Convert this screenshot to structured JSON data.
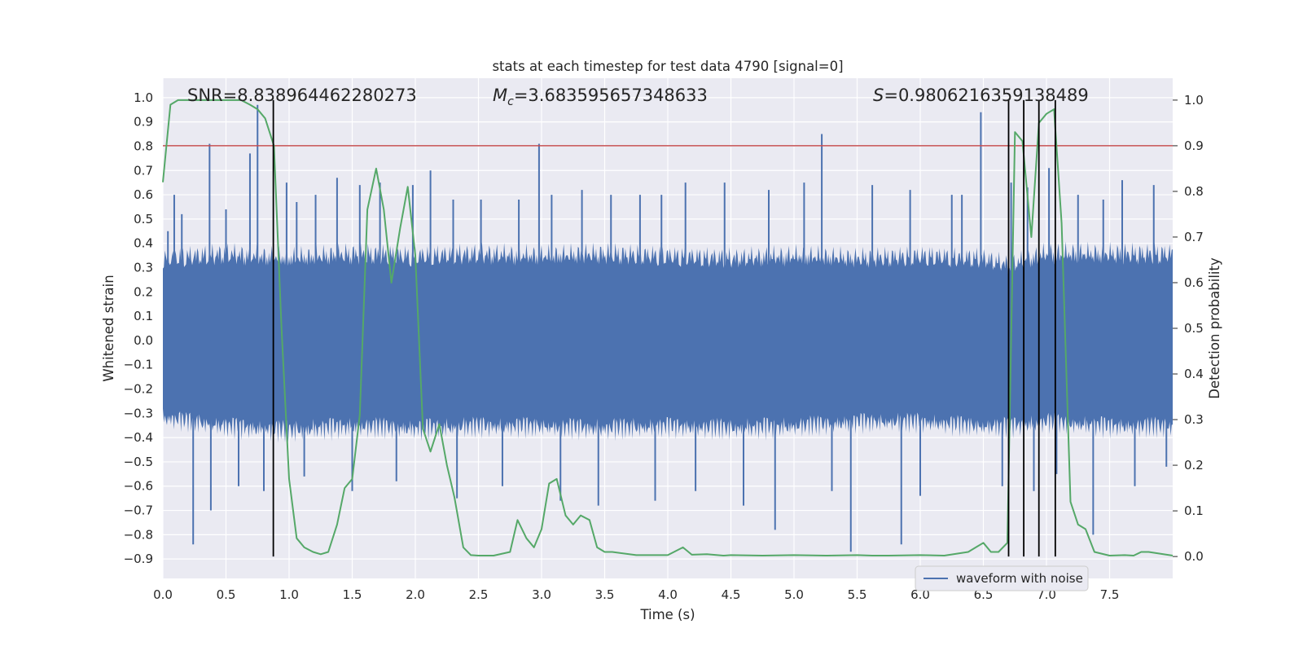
{
  "chart_data": {
    "type": "line",
    "title": "stats at each timestep for test data 4790 [signal=0]",
    "xlabel": "Time (s)",
    "ylabel": "Whitened strain",
    "ylabel_right": "Detection probability",
    "xlim": [
      0,
      8
    ],
    "ylim": [
      -0.98,
      1.08
    ],
    "ylim_right": [
      -0.048,
      1.048
    ],
    "x_ticks": [
      0.0,
      0.5,
      1.0,
      1.5,
      2.0,
      2.5,
      3.0,
      3.5,
      4.0,
      4.5,
      5.0,
      5.5,
      6.0,
      6.5,
      7.0,
      7.5
    ],
    "x_tick_labels": [
      "0.0",
      "0.5",
      "1.0",
      "1.5",
      "2.0",
      "2.5",
      "3.0",
      "3.5",
      "4.0",
      "4.5",
      "5.0",
      "5.5",
      "6.0",
      "6.5",
      "7.0",
      "7.5"
    ],
    "y_ticks": [
      -0.9,
      -0.8,
      -0.7,
      -0.6,
      -0.5,
      -0.4,
      -0.3,
      -0.2,
      -0.1,
      0.0,
      0.1,
      0.2,
      0.3,
      0.4,
      0.5,
      0.6,
      0.7,
      0.8,
      0.9,
      1.0
    ],
    "y_tick_labels": [
      "−0.9",
      "−0.8",
      "−0.7",
      "−0.6",
      "−0.5",
      "−0.4",
      "−0.3",
      "−0.2",
      "−0.1",
      "0.0",
      "0.1",
      "0.2",
      "0.3",
      "0.4",
      "0.5",
      "0.6",
      "0.7",
      "0.8",
      "0.9",
      "1.0"
    ],
    "y2_ticks": [
      0.0,
      0.1,
      0.2,
      0.3,
      0.4,
      0.5,
      0.6,
      0.7,
      0.8,
      0.9,
      1.0
    ],
    "y2_tick_labels": [
      "0.0",
      "0.1",
      "0.2",
      "0.3",
      "0.4",
      "0.5",
      "0.6",
      "0.7",
      "0.8",
      "0.9",
      "1.0"
    ],
    "annotations": {
      "snr": "SNR=8.838964462280273",
      "mc_symbol": "M",
      "mc_sub": "c",
      "mc_value": "=3.683595657348633",
      "s_symbol": "S",
      "s_value": "=0.9806216359138489"
    },
    "legend": {
      "label": "waveform with noise",
      "placement": "lower-right"
    },
    "threshold": {
      "axis": "right",
      "value": 0.9,
      "color": "#c44e52"
    },
    "vertical_markers": [
      0.875,
      6.7,
      6.82,
      6.94,
      7.07
    ],
    "noise_envelope": {
      "x": [
        0.0,
        0.5,
        1.0,
        1.5,
        2.0,
        2.5,
        3.0,
        3.5,
        4.0,
        4.5,
        5.0,
        5.5,
        6.0,
        6.5,
        6.7,
        7.0,
        7.5,
        8.0
      ],
      "upper": [
        0.38,
        0.4,
        0.38,
        0.4,
        0.39,
        0.4,
        0.39,
        0.4,
        0.39,
        0.38,
        0.39,
        0.38,
        0.39,
        0.38,
        0.35,
        0.4,
        0.4,
        0.4
      ],
      "lower": [
        -0.36,
        -0.4,
        -0.42,
        -0.4,
        -0.41,
        -0.4,
        -0.4,
        -0.41,
        -0.4,
        -0.41,
        -0.4,
        -0.38,
        -0.38,
        -0.4,
        -0.4,
        -0.38,
        -0.4,
        -0.4
      ],
      "peaks": [
        [
          0.04,
          0.45
        ],
        [
          0.09,
          0.6
        ],
        [
          0.15,
          0.52
        ],
        [
          0.24,
          -0.84
        ],
        [
          0.37,
          0.81
        ],
        [
          0.38,
          -0.7
        ],
        [
          0.5,
          0.54
        ],
        [
          0.6,
          -0.6
        ],
        [
          0.69,
          0.77
        ],
        [
          0.75,
          0.97
        ],
        [
          0.8,
          -0.62
        ],
        [
          0.98,
          0.65
        ],
        [
          1.06,
          0.57
        ],
        [
          1.12,
          -0.56
        ],
        [
          1.21,
          0.6
        ],
        [
          1.38,
          0.67
        ],
        [
          1.5,
          -0.62
        ],
        [
          1.56,
          0.64
        ],
        [
          1.72,
          0.65
        ],
        [
          1.85,
          -0.58
        ],
        [
          1.98,
          0.64
        ],
        [
          2.12,
          0.7
        ],
        [
          2.3,
          0.58
        ],
        [
          2.33,
          -0.65
        ],
        [
          2.52,
          0.58
        ],
        [
          2.69,
          -0.6
        ],
        [
          2.82,
          0.58
        ],
        [
          2.98,
          0.81
        ],
        [
          3.08,
          0.6
        ],
        [
          3.15,
          -0.66
        ],
        [
          3.32,
          0.62
        ],
        [
          3.45,
          -0.68
        ],
        [
          3.55,
          0.6
        ],
        [
          3.78,
          0.6
        ],
        [
          3.9,
          -0.66
        ],
        [
          3.95,
          0.6
        ],
        [
          4.14,
          0.65
        ],
        [
          4.22,
          -0.62
        ],
        [
          4.45,
          0.65
        ],
        [
          4.6,
          -0.68
        ],
        [
          4.8,
          0.62
        ],
        [
          4.85,
          -0.78
        ],
        [
          5.08,
          0.65
        ],
        [
          5.22,
          0.85
        ],
        [
          5.3,
          -0.62
        ],
        [
          5.45,
          -0.87
        ],
        [
          5.62,
          0.64
        ],
        [
          5.85,
          -0.84
        ],
        [
          5.92,
          0.62
        ],
        [
          6.0,
          -0.64
        ],
        [
          6.25,
          0.6
        ],
        [
          6.33,
          0.6
        ],
        [
          6.48,
          0.94
        ],
        [
          6.65,
          -0.6
        ],
        [
          6.72,
          0.65
        ],
        [
          6.85,
          0.63
        ],
        [
          6.9,
          -0.62
        ],
        [
          7.02,
          0.71
        ],
        [
          7.08,
          -0.55
        ],
        [
          7.25,
          0.6
        ],
        [
          7.37,
          -0.8
        ],
        [
          7.45,
          0.58
        ],
        [
          7.6,
          0.66
        ],
        [
          7.7,
          -0.6
        ],
        [
          7.85,
          0.64
        ],
        [
          7.95,
          -0.52
        ]
      ]
    },
    "series": [
      {
        "name": "waveform with noise",
        "axis": "left",
        "color": "#4c72b0",
        "kind": "noise"
      },
      {
        "name": "detection probability",
        "axis": "right",
        "color": "#55a868",
        "x": [
          0.0,
          0.06,
          0.12,
          0.19,
          0.25,
          0.31,
          0.38,
          0.44,
          0.5,
          0.56,
          0.62,
          0.69,
          0.75,
          0.81,
          0.88,
          0.94,
          1.0,
          1.06,
          1.12,
          1.19,
          1.25,
          1.31,
          1.38,
          1.44,
          1.5,
          1.56,
          1.62,
          1.69,
          1.75,
          1.81,
          1.88,
          1.94,
          2.0,
          2.06,
          2.12,
          2.19,
          2.25,
          2.31,
          2.38,
          2.44,
          2.5,
          2.62,
          2.75,
          2.81,
          2.88,
          2.94,
          3.0,
          3.06,
          3.12,
          3.19,
          3.25,
          3.31,
          3.38,
          3.44,
          3.5,
          3.56,
          3.75,
          4.0,
          4.12,
          4.19,
          4.31,
          4.44,
          4.5,
          4.75,
          5.0,
          5.25,
          5.5,
          5.62,
          5.75,
          6.0,
          6.19,
          6.38,
          6.44,
          6.5,
          6.56,
          6.62,
          6.69,
          6.75,
          6.81,
          6.88,
          6.94,
          7.0,
          7.06,
          7.12,
          7.19,
          7.25,
          7.31,
          7.38,
          7.5,
          7.62,
          7.69,
          7.75,
          7.81,
          8.0
        ],
        "values": [
          0.82,
          0.99,
          1.0,
          1.0,
          1.0,
          1.0,
          1.0,
          1.0,
          1.0,
          1.0,
          1.0,
          0.99,
          0.98,
          0.96,
          0.9,
          0.5,
          0.17,
          0.04,
          0.02,
          0.01,
          0.005,
          0.01,
          0.07,
          0.15,
          0.17,
          0.31,
          0.76,
          0.85,
          0.76,
          0.6,
          0.72,
          0.81,
          0.66,
          0.28,
          0.23,
          0.29,
          0.2,
          0.13,
          0.02,
          0.003,
          0.002,
          0.002,
          0.01,
          0.08,
          0.04,
          0.02,
          0.06,
          0.16,
          0.17,
          0.09,
          0.07,
          0.09,
          0.08,
          0.02,
          0.01,
          0.01,
          0.003,
          0.003,
          0.02,
          0.004,
          0.005,
          0.002,
          0.003,
          0.002,
          0.003,
          0.002,
          0.003,
          0.002,
          0.002,
          0.003,
          0.002,
          0.01,
          0.02,
          0.03,
          0.01,
          0.01,
          0.03,
          0.93,
          0.91,
          0.7,
          0.95,
          0.97,
          0.98,
          0.73,
          0.12,
          0.07,
          0.06,
          0.01,
          0.002,
          0.003,
          0.002,
          0.01,
          0.01,
          0.002
        ]
      }
    ]
  }
}
